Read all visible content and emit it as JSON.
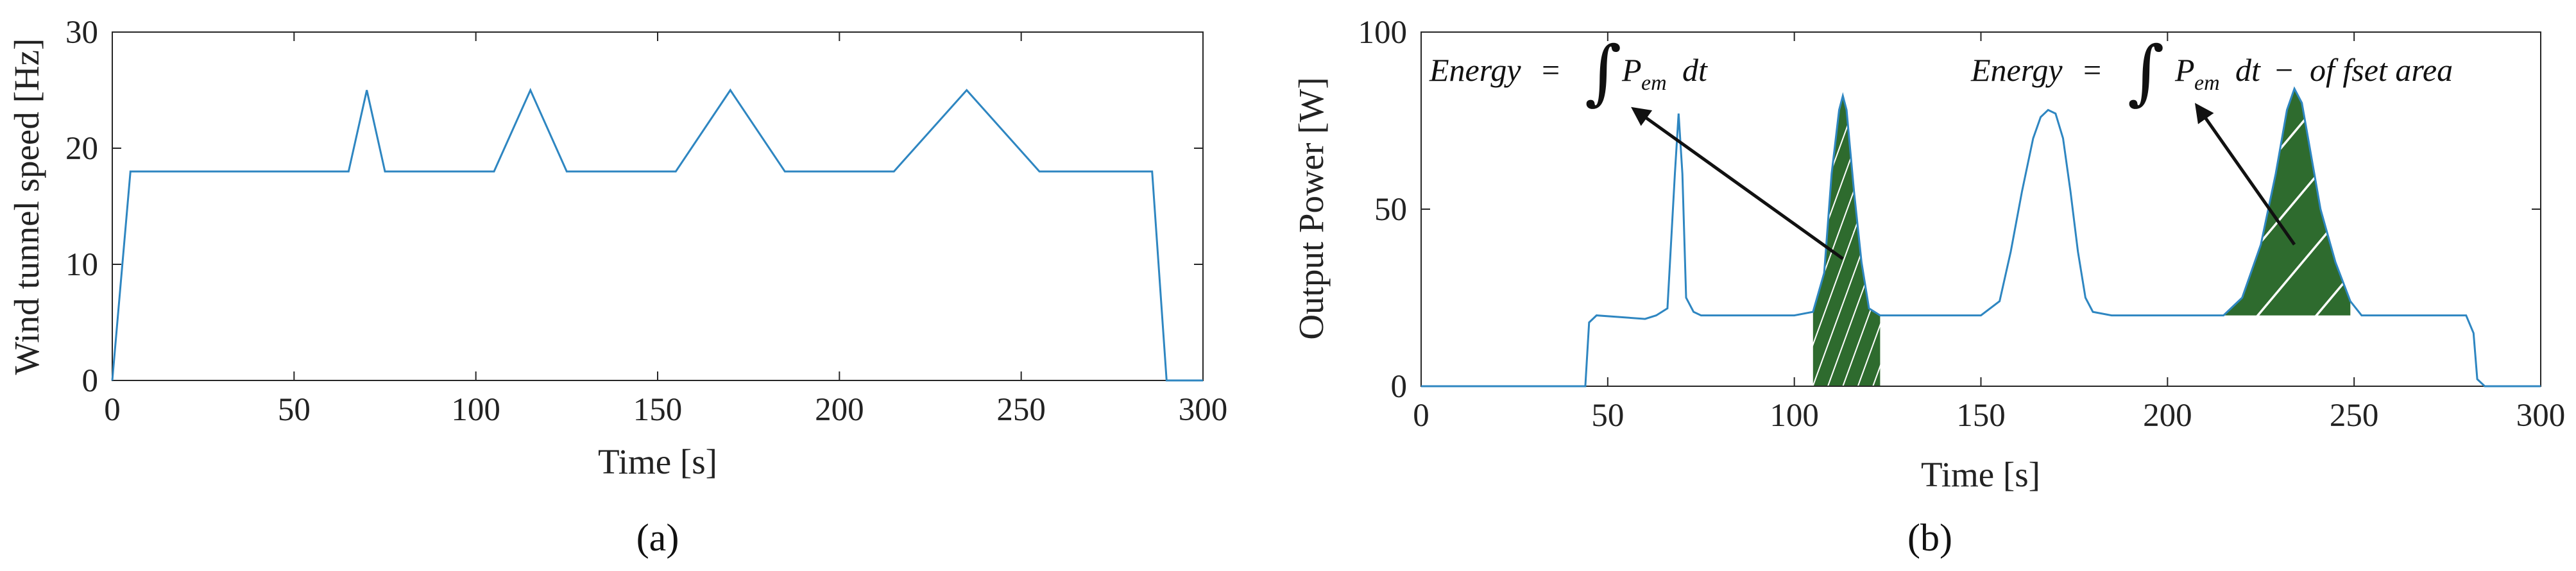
{
  "chart_data": [
    {
      "type": "line",
      "panel_label": "(a)",
      "xlabel": "Time [s]",
      "ylabel": "Wind tunnel speed [Hz]",
      "xlim": [
        0,
        300
      ],
      "ylim": [
        0,
        30
      ],
      "xticks": [
        "0",
        "50",
        "100",
        "150",
        "200",
        "250",
        "300"
      ],
      "yticks": [
        "0",
        "10",
        "20",
        "30"
      ],
      "grid": false,
      "line_color": "#2e86c1",
      "series": [
        {
          "x": [
            0,
            5,
            65,
            70,
            75,
            105,
            115,
            125,
            155,
            170,
            185,
            215,
            235,
            255,
            286,
            290,
            300
          ],
          "y": [
            0,
            18,
            18,
            25,
            18,
            18,
            25,
            18,
            18,
            25,
            18,
            18,
            25,
            18,
            18,
            0,
            0
          ]
        }
      ]
    },
    {
      "type": "line",
      "panel_label": "(b)",
      "xlabel": "Time [s]",
      "ylabel": "Output Power [W]",
      "xlim": [
        0,
        300
      ],
      "ylim": [
        0,
        100
      ],
      "xticks": [
        "0",
        "50",
        "100",
        "150",
        "200",
        "250",
        "300"
      ],
      "yticks": [
        "0",
        "50",
        "100"
      ],
      "grid": false,
      "line_color": "#2e86c1",
      "fill_color": "#2e6b2e",
      "series": [
        {
          "x": [
            0,
            44,
            45,
            47,
            60,
            63,
            66,
            68,
            69,
            70,
            71,
            73,
            75,
            80,
            100,
            105,
            108,
            110,
            112,
            113,
            114,
            116,
            118,
            120,
            123,
            125,
            130,
            150,
            155,
            158,
            161,
            164,
            166,
            168,
            170,
            172,
            174,
            176,
            178,
            180,
            185,
            210,
            215,
            220,
            225,
            229,
            232,
            234,
            236,
            238,
            241,
            245,
            249,
            252,
            260,
            270,
            280,
            282,
            283,
            285,
            300
          ],
          "y": [
            0,
            0,
            18,
            20,
            19,
            20,
            22,
            60,
            77,
            60,
            25,
            21,
            20,
            20,
            20,
            21,
            32,
            60,
            78,
            82,
            78,
            55,
            35,
            22,
            20,
            20,
            20,
            20,
            24,
            38,
            55,
            70,
            76,
            78,
            77,
            70,
            55,
            38,
            25,
            21,
            20,
            20,
            20,
            25,
            40,
            60,
            78,
            84,
            80,
            68,
            50,
            35,
            24,
            20,
            20,
            20,
            20,
            15,
            2,
            0,
            0
          ]
        }
      ],
      "annotations": [
        {
          "text": "Energy = ∫ P_em dt",
          "target": [
            113,
            36
          ]
        },
        {
          "text": "Energy = ∫ P_em dt − offset area",
          "target": [
            234,
            40
          ]
        }
      ]
    }
  ],
  "formulas": {
    "left": {
      "energy": "Energy",
      "eq": "=",
      "integral": "∫",
      "p": "P",
      "sub": "em",
      "dt": "dt"
    },
    "right": {
      "energy": "Energy",
      "eq": "=",
      "integral": "∫",
      "p": "P",
      "sub": "em",
      "dt": "dt",
      "minus": "−",
      "offset": "of fset area"
    }
  }
}
